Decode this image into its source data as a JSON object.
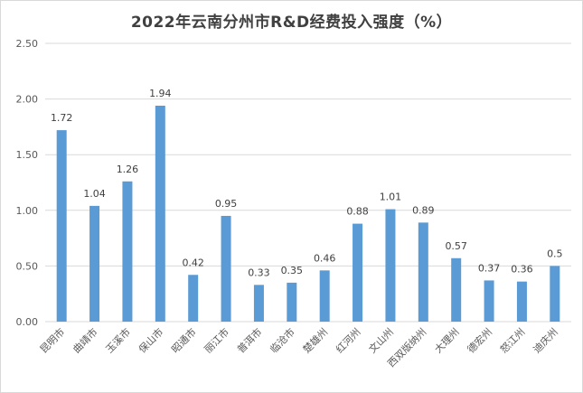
{
  "chart_data": {
    "type": "bar",
    "title": "2022年云南分州市R&D经费投入强度（%）",
    "categories": [
      "昆明市",
      "曲靖市",
      "玉溪市",
      "保山市",
      "昭通市",
      "丽江市",
      "普洱市",
      "临沧市",
      "楚雄州",
      "红河州",
      "文山州",
      "西双版纳州",
      "大理州",
      "德宏州",
      "怒江州",
      "迪庆州"
    ],
    "values": [
      1.72,
      1.04,
      1.26,
      1.94,
      0.42,
      0.95,
      0.33,
      0.35,
      0.46,
      0.88,
      1.01,
      0.89,
      0.57,
      0.37,
      0.36,
      0.5
    ],
    "data_labels": [
      "1.72",
      "1.04",
      "1.26",
      "1.94",
      "0.42",
      "0.95",
      "0.33",
      "0.35",
      "0.46",
      "0.88",
      "1.01",
      "0.89",
      "0.57",
      "0.37",
      "0.36",
      "0.5"
    ],
    "ylim": [
      0,
      2.5
    ],
    "yticks": [
      "0.00",
      "0.50",
      "1.00",
      "1.50",
      "2.00",
      "2.50"
    ],
    "grid": true,
    "bar_color": "#5b9bd5",
    "grid_color": "#d9d9d9"
  }
}
